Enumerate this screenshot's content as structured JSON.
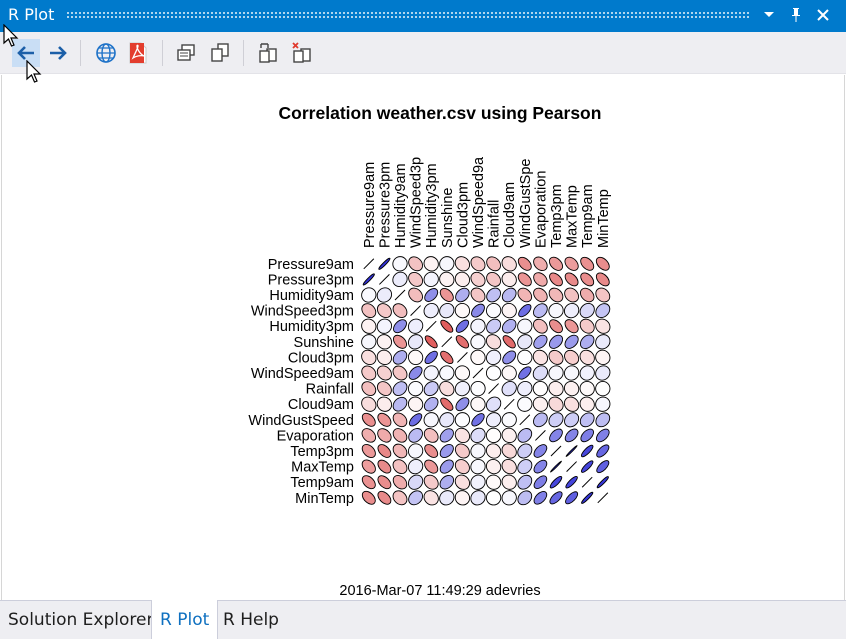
{
  "window": {
    "title": "R Plot"
  },
  "titlebar_buttons": [
    {
      "name": "dropdown-icon",
      "glyph": "▾"
    },
    {
      "name": "pin-icon",
      "glyph": "†"
    },
    {
      "name": "close-icon",
      "glyph": "✕"
    }
  ],
  "toolbar": {
    "items": [
      "back-arrow-icon",
      "forward-arrow-icon",
      "globe-icon",
      "pdf-icon",
      "copy-as-metafile-icon",
      "copy-as-bitmap-icon",
      "export-icon",
      "remove-plot-icon"
    ]
  },
  "plot": {
    "title": "Correlation weather.csv using Pearson",
    "footer": "2016-Mar-07 11:49:29 adevries"
  },
  "chart_data": {
    "type": "heatmap",
    "title": "Correlation weather.csv using Pearson",
    "variables": [
      "Pressure9am",
      "Pressure3pm",
      "Humidity9am",
      "WindSpeed3pm",
      "Humidity3pm",
      "Sunshine",
      "Cloud3pm",
      "WindSpeed9am",
      "Rainfall",
      "Cloud9am",
      "WindGustSpeed",
      "Evaporation",
      "Temp3pm",
      "MaxTemp",
      "Temp9am",
      "MinTemp"
    ],
    "column_labels_shown": [
      "Pressure9am",
      "Pressure3pm",
      "Humidity9am",
      "WindSpeed3p",
      "Humidity3pm",
      "Sunshine",
      "Cloud3pm",
      "WindSpeed9a",
      "Rainfall",
      "Cloud9am",
      "WindGustSpe",
      "Evaporation",
      "Temp3pm",
      "MaxTemp",
      "Temp9am",
      "MinTemp"
    ],
    "glyph": "ellipse",
    "matrix": [
      [
        1,
        0.96,
        0.03,
        -0.29,
        -0.06,
        0.04,
        -0.15,
        -0.25,
        -0.3,
        -0.16,
        -0.53,
        -0.38,
        -0.48,
        -0.46,
        -0.52,
        -0.54
      ],
      [
        0.96,
        1,
        0.09,
        -0.26,
        0.05,
        -0.06,
        -0.08,
        -0.22,
        -0.27,
        -0.09,
        -0.5,
        -0.4,
        -0.56,
        -0.55,
        -0.54,
        -0.55
      ],
      [
        0.03,
        0.09,
        1,
        -0.31,
        0.53,
        -0.5,
        0.38,
        -0.27,
        0.3,
        0.33,
        -0.35,
        -0.36,
        -0.34,
        -0.29,
        -0.39,
        -0.28
      ],
      [
        -0.29,
        -0.26,
        -0.31,
        1,
        0.08,
        0.11,
        -0.03,
        0.55,
        0.02,
        -0.05,
        0.69,
        0.32,
        0.04,
        0.08,
        0.18,
        0.28
      ],
      [
        -0.06,
        0.05,
        0.53,
        0.08,
        1,
        -0.76,
        0.68,
        0.05,
        0.25,
        0.37,
        0.04,
        -0.3,
        -0.54,
        -0.49,
        -0.25,
        -0.13
      ],
      [
        0.04,
        -0.06,
        -0.5,
        0.11,
        -0.76,
        1,
        -0.68,
        0.03,
        -0.16,
        -0.7,
        0.11,
        0.45,
        0.48,
        0.47,
        0.38,
        0.1
      ],
      [
        -0.15,
        -0.08,
        0.38,
        -0.03,
        0.68,
        -0.68,
        1,
        -0.03,
        0.07,
        0.53,
        0.01,
        -0.13,
        -0.25,
        -0.23,
        -0.15,
        -0.05
      ],
      [
        -0.25,
        -0.22,
        -0.27,
        0.55,
        0.05,
        0.03,
        -0.03,
        1,
        0.01,
        -0.04,
        0.67,
        0.16,
        0.04,
        0.04,
        0.06,
        0.1
      ],
      [
        -0.3,
        -0.27,
        0.3,
        0.02,
        0.25,
        -0.16,
        0.07,
        0.01,
        1,
        0.15,
        0.08,
        -0.01,
        -0.08,
        -0.07,
        -0.03,
        0.0
      ],
      [
        -0.16,
        -0.09,
        0.33,
        -0.05,
        0.37,
        -0.7,
        0.53,
        -0.04,
        0.15,
        1,
        0.02,
        -0.07,
        -0.18,
        -0.15,
        -0.08,
        0.04
      ],
      [
        -0.53,
        -0.5,
        -0.35,
        0.69,
        0.04,
        0.11,
        0.01,
        0.67,
        0.08,
        0.02,
        1,
        0.32,
        0.23,
        0.23,
        0.3,
        0.31
      ],
      [
        -0.38,
        -0.4,
        -0.36,
        0.32,
        -0.3,
        0.45,
        -0.13,
        0.16,
        -0.01,
        -0.07,
        0.32,
        1,
        0.58,
        0.58,
        0.61,
        0.6
      ],
      [
        -0.48,
        -0.56,
        -0.34,
        0.04,
        -0.54,
        0.48,
        -0.25,
        0.04,
        -0.08,
        -0.18,
        0.23,
        0.58,
        1,
        0.99,
        0.87,
        0.72
      ],
      [
        -0.46,
        -0.55,
        -0.29,
        0.08,
        -0.49,
        0.47,
        -0.23,
        0.04,
        -0.07,
        -0.15,
        0.23,
        0.58,
        0.99,
        1,
        0.88,
        0.75
      ],
      [
        -0.52,
        -0.54,
        -0.39,
        0.18,
        -0.25,
        0.38,
        -0.15,
        0.06,
        -0.03,
        -0.08,
        0.3,
        0.61,
        0.87,
        0.88,
        1,
        0.95
      ],
      [
        -0.54,
        -0.55,
        -0.28,
        0.28,
        -0.13,
        0.1,
        -0.05,
        0.1,
        0.0,
        0.04,
        0.31,
        0.6,
        0.72,
        0.75,
        0.95,
        1
      ]
    ],
    "colors": {
      "positive": "#2b2bd6",
      "negative": "#d62b2b",
      "zero": "#ffffff"
    }
  },
  "bottom_tabs": [
    {
      "label": "Solution Explorer",
      "selected": false
    },
    {
      "label": "R Plot",
      "selected": true
    },
    {
      "label": "R Help",
      "selected": false
    }
  ],
  "colors": {
    "accent": "#007acc",
    "toolbar": "#eeeef2"
  }
}
